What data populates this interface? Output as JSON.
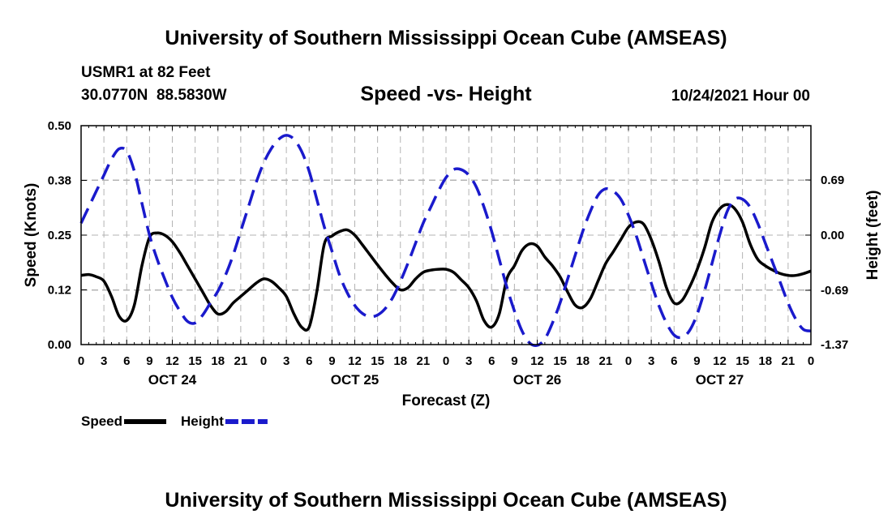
{
  "chart_data": {
    "type": "line",
    "title": "University of Southern Mississippi Ocean Cube (AMSEAS)",
    "footer_title": "University of Southern Mississippi Ocean Cube (AMSEAS)",
    "station": "USMR1 at 82 Feet",
    "coords": "30.0770N  88.5830W",
    "subtitle": "Speed -vs- Height",
    "datetime": "10/24/2021 Hour 00",
    "xlabel": "Forecast (Z)",
    "ylabel_left": "Speed (Knots)",
    "ylabel_right": "Height (feet)",
    "grid": true,
    "legend_position": "bottom-left",
    "x_range_hours": [
      0,
      96
    ],
    "y_left_range": [
      0,
      0.5
    ],
    "y_right_range": [
      -1.37,
      1.37
    ],
    "x_ticks": [
      {
        "h": 0,
        "label": "0"
      },
      {
        "h": 3,
        "label": "3"
      },
      {
        "h": 6,
        "label": "6"
      },
      {
        "h": 9,
        "label": "9"
      },
      {
        "h": 12,
        "label": "12"
      },
      {
        "h": 15,
        "label": "15"
      },
      {
        "h": 18,
        "label": "18"
      },
      {
        "h": 21,
        "label": "21"
      },
      {
        "h": 24,
        "label": "0"
      },
      {
        "h": 27,
        "label": "3"
      },
      {
        "h": 30,
        "label": "6"
      },
      {
        "h": 33,
        "label": "9"
      },
      {
        "h": 36,
        "label": "12"
      },
      {
        "h": 39,
        "label": "15"
      },
      {
        "h": 42,
        "label": "18"
      },
      {
        "h": 45,
        "label": "21"
      },
      {
        "h": 48,
        "label": "0"
      },
      {
        "h": 51,
        "label": "3"
      },
      {
        "h": 54,
        "label": "6"
      },
      {
        "h": 57,
        "label": "9"
      },
      {
        "h": 60,
        "label": "12"
      },
      {
        "h": 63,
        "label": "15"
      },
      {
        "h": 66,
        "label": "18"
      },
      {
        "h": 69,
        "label": "21"
      },
      {
        "h": 72,
        "label": "0"
      },
      {
        "h": 75,
        "label": "3"
      },
      {
        "h": 78,
        "label": "6"
      },
      {
        "h": 81,
        "label": "9"
      },
      {
        "h": 84,
        "label": "12"
      },
      {
        "h": 87,
        "label": "15"
      },
      {
        "h": 90,
        "label": "18"
      },
      {
        "h": 93,
        "label": "21"
      },
      {
        "h": 96,
        "label": "0"
      }
    ],
    "date_labels": [
      {
        "h": 12,
        "label": "OCT 24"
      },
      {
        "h": 36,
        "label": "OCT 25"
      },
      {
        "h": 60,
        "label": "OCT 26"
      },
      {
        "h": 84,
        "label": "OCT 27"
      }
    ],
    "y_left_ticks": [
      {
        "v": 0.0,
        "label": "0.00"
      },
      {
        "v": 0.125,
        "label": "0.12"
      },
      {
        "v": 0.25,
        "label": "0.25"
      },
      {
        "v": 0.375,
        "label": "0.38"
      },
      {
        "v": 0.5,
        "label": "0.50"
      }
    ],
    "y_right_ticks": [
      {
        "v": 0.69,
        "label": "0.69"
      },
      {
        "v": 0.0,
        "label": "0.00"
      },
      {
        "v": -0.69,
        "label": "-0.69"
      },
      {
        "v": -1.37,
        "label": "-1.37"
      }
    ],
    "series": [
      {
        "name": "Speed",
        "axis": "left",
        "color": "#000000",
        "dash": "solid",
        "points": [
          [
            0,
            0.158
          ],
          [
            1,
            0.16
          ],
          [
            2,
            0.155
          ],
          [
            3,
            0.145
          ],
          [
            4,
            0.11
          ],
          [
            5,
            0.065
          ],
          [
            6,
            0.055
          ],
          [
            7,
            0.09
          ],
          [
            8,
            0.18
          ],
          [
            9,
            0.245
          ],
          [
            10,
            0.255
          ],
          [
            11,
            0.25
          ],
          [
            12,
            0.235
          ],
          [
            13,
            0.21
          ],
          [
            14,
            0.18
          ],
          [
            15,
            0.15
          ],
          [
            16,
            0.12
          ],
          [
            17,
            0.09
          ],
          [
            18,
            0.07
          ],
          [
            19,
            0.075
          ],
          [
            20,
            0.095
          ],
          [
            21,
            0.11
          ],
          [
            22,
            0.125
          ],
          [
            23,
            0.14
          ],
          [
            24,
            0.15
          ],
          [
            25,
            0.145
          ],
          [
            26,
            0.13
          ],
          [
            27,
            0.11
          ],
          [
            28,
            0.07
          ],
          [
            29,
            0.04
          ],
          [
            30,
            0.04
          ],
          [
            31,
            0.12
          ],
          [
            32,
            0.23
          ],
          [
            33,
            0.248
          ],
          [
            34,
            0.258
          ],
          [
            35,
            0.262
          ],
          [
            36,
            0.25
          ],
          [
            37,
            0.228
          ],
          [
            38,
            0.205
          ],
          [
            39,
            0.182
          ],
          [
            40,
            0.16
          ],
          [
            41,
            0.14
          ],
          [
            42,
            0.125
          ],
          [
            43,
            0.13
          ],
          [
            44,
            0.15
          ],
          [
            45,
            0.165
          ],
          [
            46,
            0.17
          ],
          [
            47,
            0.172
          ],
          [
            48,
            0.172
          ],
          [
            49,
            0.165
          ],
          [
            50,
            0.148
          ],
          [
            51,
            0.13
          ],
          [
            52,
            0.1
          ],
          [
            53,
            0.055
          ],
          [
            54,
            0.04
          ],
          [
            55,
            0.07
          ],
          [
            56,
            0.15
          ],
          [
            57,
            0.18
          ],
          [
            58,
            0.215
          ],
          [
            59,
            0.23
          ],
          [
            60,
            0.225
          ],
          [
            61,
            0.2
          ],
          [
            62,
            0.18
          ],
          [
            63,
            0.155
          ],
          [
            64,
            0.12
          ],
          [
            65,
            0.09
          ],
          [
            66,
            0.085
          ],
          [
            67,
            0.105
          ],
          [
            68,
            0.145
          ],
          [
            69,
            0.185
          ],
          [
            70,
            0.212
          ],
          [
            71,
            0.24
          ],
          [
            72,
            0.268
          ],
          [
            73,
            0.28
          ],
          [
            74,
            0.275
          ],
          [
            75,
            0.24
          ],
          [
            76,
            0.19
          ],
          [
            77,
            0.13
          ],
          [
            78,
            0.095
          ],
          [
            79,
            0.1
          ],
          [
            80,
            0.13
          ],
          [
            81,
            0.17
          ],
          [
            82,
            0.22
          ],
          [
            83,
            0.28
          ],
          [
            84,
            0.31
          ],
          [
            85,
            0.32
          ],
          [
            86,
            0.31
          ],
          [
            87,
            0.28
          ],
          [
            88,
            0.23
          ],
          [
            89,
            0.195
          ],
          [
            90,
            0.18
          ],
          [
            91,
            0.17
          ],
          [
            92,
            0.162
          ],
          [
            93,
            0.158
          ],
          [
            94,
            0.158
          ],
          [
            95,
            0.162
          ],
          [
            96,
            0.168
          ]
        ]
      },
      {
        "name": "Height",
        "axis": "right",
        "color": "#1a1acc",
        "dash": "dashed",
        "points": [
          [
            0,
            0.15
          ],
          [
            1,
            0.35
          ],
          [
            2,
            0.55
          ],
          [
            3,
            0.75
          ],
          [
            4,
            0.95
          ],
          [
            5,
            1.08
          ],
          [
            6,
            1.05
          ],
          [
            7,
            0.8
          ],
          [
            8,
            0.4
          ],
          [
            9,
            0.0
          ],
          [
            10,
            -0.3
          ],
          [
            11,
            -0.55
          ],
          [
            12,
            -0.78
          ],
          [
            13,
            -0.95
          ],
          [
            14,
            -1.08
          ],
          [
            15,
            -1.1
          ],
          [
            16,
            -1.0
          ],
          [
            17,
            -0.85
          ],
          [
            18,
            -0.7
          ],
          [
            19,
            -0.5
          ],
          [
            20,
            -0.25
          ],
          [
            21,
            0.05
          ],
          [
            22,
            0.35
          ],
          [
            23,
            0.65
          ],
          [
            24,
            0.9
          ],
          [
            25,
            1.08
          ],
          [
            26,
            1.2
          ],
          [
            27,
            1.25
          ],
          [
            28,
            1.2
          ],
          [
            29,
            1.05
          ],
          [
            30,
            0.8
          ],
          [
            31,
            0.45
          ],
          [
            32,
            0.1
          ],
          [
            33,
            -0.2
          ],
          [
            34,
            -0.5
          ],
          [
            35,
            -0.72
          ],
          [
            36,
            -0.88
          ],
          [
            37,
            -0.98
          ],
          [
            38,
            -1.02
          ],
          [
            39,
            -1.0
          ],
          [
            40,
            -0.92
          ],
          [
            41,
            -0.78
          ],
          [
            42,
            -0.58
          ],
          [
            43,
            -0.35
          ],
          [
            44,
            -0.1
          ],
          [
            45,
            0.15
          ],
          [
            46,
            0.35
          ],
          [
            47,
            0.55
          ],
          [
            48,
            0.72
          ],
          [
            49,
            0.82
          ],
          [
            50,
            0.82
          ],
          [
            51,
            0.75
          ],
          [
            52,
            0.6
          ],
          [
            53,
            0.35
          ],
          [
            54,
            0.05
          ],
          [
            55,
            -0.3
          ],
          [
            56,
            -0.65
          ],
          [
            57,
            -0.95
          ],
          [
            58,
            -1.2
          ],
          [
            59,
            -1.35
          ],
          [
            60,
            -1.38
          ],
          [
            61,
            -1.3
          ],
          [
            62,
            -1.1
          ],
          [
            63,
            -0.85
          ],
          [
            64,
            -0.55
          ],
          [
            65,
            -0.25
          ],
          [
            66,
            0.05
          ],
          [
            67,
            0.3
          ],
          [
            68,
            0.5
          ],
          [
            69,
            0.58
          ],
          [
            70,
            0.55
          ],
          [
            71,
            0.45
          ],
          [
            72,
            0.25
          ],
          [
            73,
            0.0
          ],
          [
            74,
            -0.3
          ],
          [
            75,
            -0.6
          ],
          [
            76,
            -0.88
          ],
          [
            77,
            -1.1
          ],
          [
            78,
            -1.25
          ],
          [
            79,
            -1.28
          ],
          [
            80,
            -1.2
          ],
          [
            81,
            -1.0
          ],
          [
            82,
            -0.7
          ],
          [
            83,
            -0.35
          ],
          [
            84,
            0.0
          ],
          [
            85,
            0.3
          ],
          [
            86,
            0.45
          ],
          [
            87,
            0.45
          ],
          [
            88,
            0.35
          ],
          [
            89,
            0.15
          ],
          [
            90,
            -0.1
          ],
          [
            91,
            -0.35
          ],
          [
            92,
            -0.6
          ],
          [
            93,
            -0.85
          ],
          [
            94,
            -1.05
          ],
          [
            95,
            -1.18
          ],
          [
            96,
            -1.2
          ]
        ]
      }
    ],
    "legend": [
      {
        "name": "Speed",
        "color": "#000000",
        "dash": "solid"
      },
      {
        "name": "Height",
        "color": "#1a1acc",
        "dash": "dashed"
      }
    ]
  }
}
